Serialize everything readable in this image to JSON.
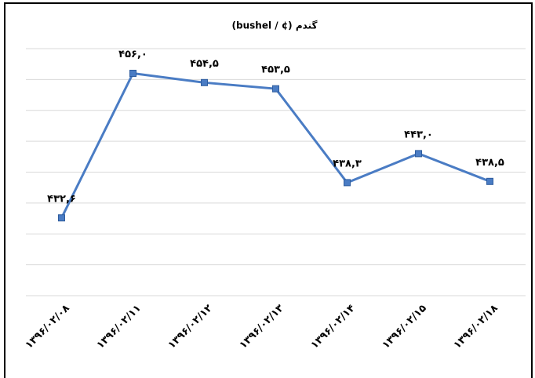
{
  "chart_data": {
    "type": "line",
    "title": "گندم (¢ / bushel)",
    "categories": [
      "۱۳۹۶/۰۲/۰۸",
      "۱۳۹۶/۰۲/۱۱",
      "۱۳۹۶/۰۲/۱۲",
      "۱۳۹۶/۰۲/۱۳",
      "۱۳۹۶/۰۲/۱۴",
      "۱۳۹۶/۰۲/۱۵",
      "۱۳۹۶/۰۲/۱۸"
    ],
    "series": [
      {
        "name": "گندم",
        "color": "#4a7cc4",
        "values": [
          432.6,
          456.0,
          454.5,
          453.5,
          438.3,
          443.0,
          438.5
        ],
        "value_labels": [
          "۴۳۲,۶",
          "۴۵۶,۰",
          "۴۵۴,۵",
          "۴۵۳,۵",
          "۴۳۸,۳",
          "۴۴۳,۰",
          "۴۳۸,۵"
        ]
      }
    ],
    "ylim": [
      420,
      460
    ],
    "yticks": [
      420,
      425,
      430,
      435,
      440,
      445,
      450,
      455,
      460
    ],
    "grid": true
  }
}
